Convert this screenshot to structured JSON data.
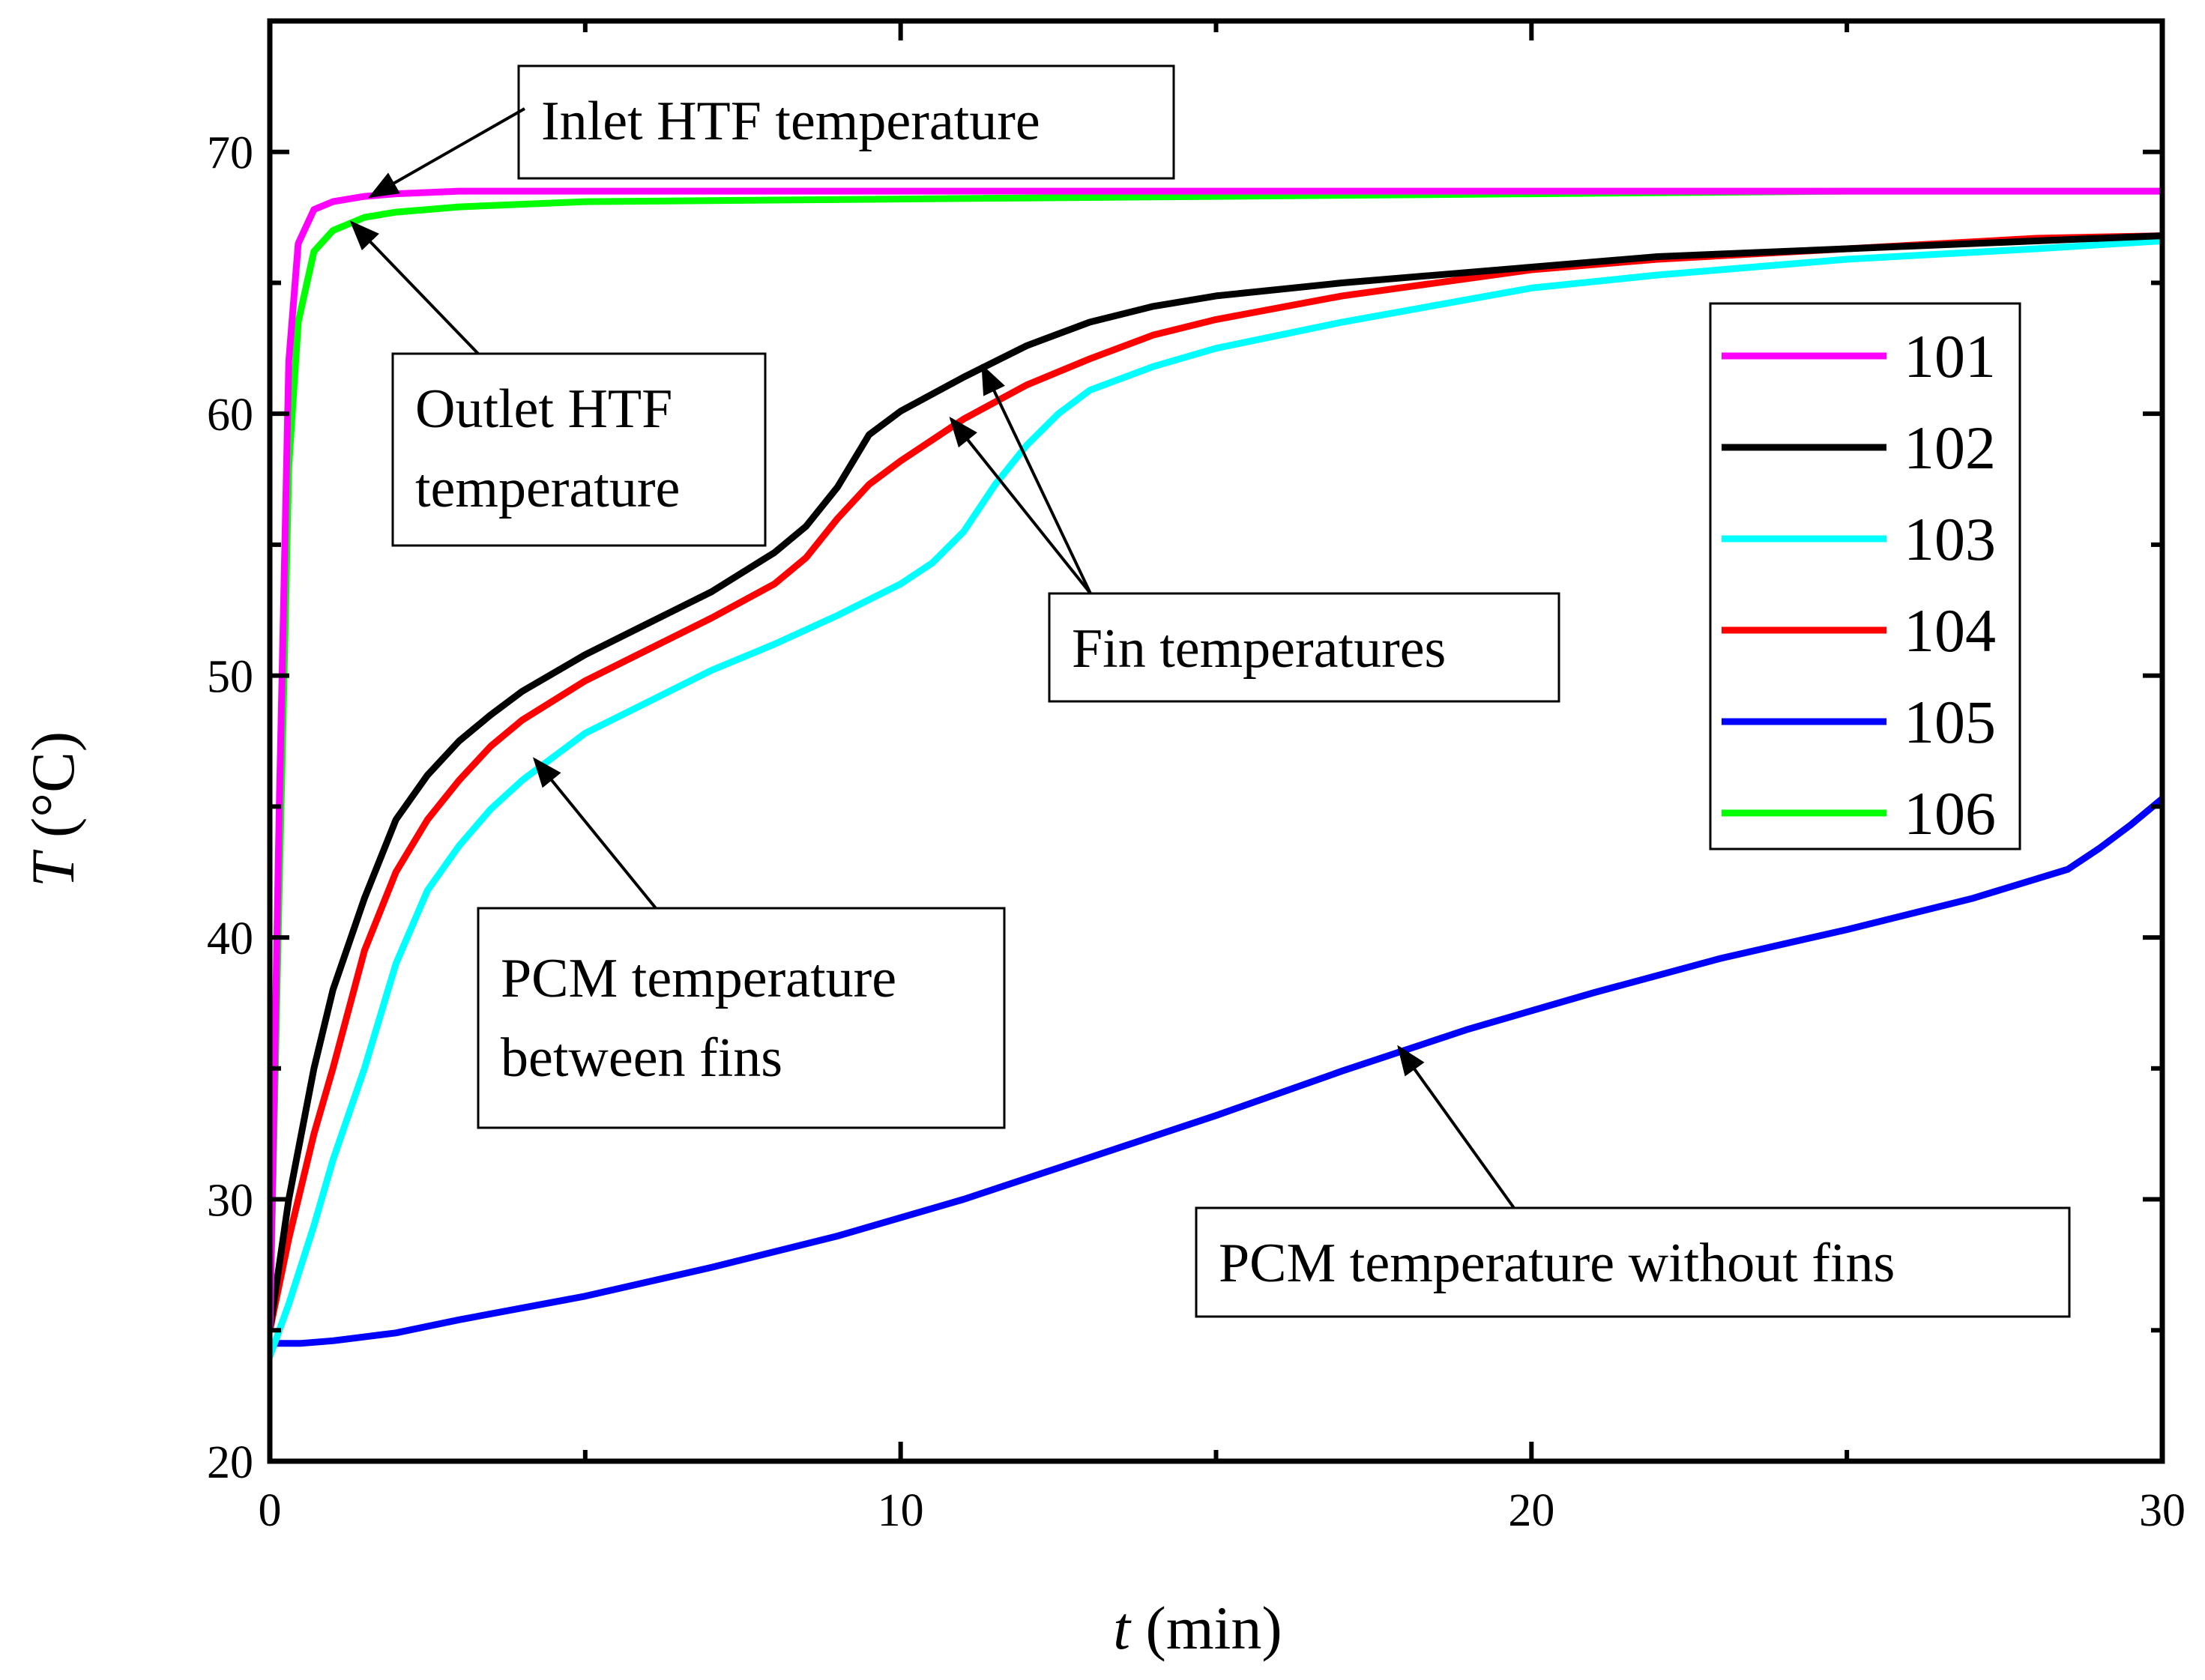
{
  "chart_data": {
    "type": "line",
    "title": "",
    "xlabel_var": "t",
    "xlabel_unit": " (min)",
    "ylabel_var": "T",
    "ylabel_unit": " (°C)",
    "xlim": [
      0,
      30
    ],
    "ylim": [
      20,
      75
    ],
    "xticks": [
      0,
      10,
      20,
      30
    ],
    "yticks": [
      20,
      30,
      40,
      50,
      60,
      70
    ],
    "xtick_labels": [
      "0",
      "10",
      "20",
      "30"
    ],
    "ytick_labels": [
      "20",
      "30",
      "40",
      "50",
      "60",
      "70"
    ],
    "grid": false,
    "legend_position": "right-top",
    "series": [
      {
        "name": "101",
        "color": "#ff00ff",
        "points": [
          [
            0,
            25
          ],
          [
            0.15,
            45
          ],
          [
            0.3,
            62
          ],
          [
            0.45,
            66.5
          ],
          [
            0.7,
            67.8
          ],
          [
            1.0,
            68.1
          ],
          [
            1.5,
            68.3
          ],
          [
            2,
            68.4
          ],
          [
            3,
            68.5
          ],
          [
            5,
            68.5
          ],
          [
            10,
            68.5
          ],
          [
            15,
            68.5
          ],
          [
            20,
            68.5
          ],
          [
            25,
            68.5
          ],
          [
            30,
            68.5
          ]
        ]
      },
      {
        "name": "102",
        "color": "#000000",
        "points": [
          [
            0,
            25
          ],
          [
            0.3,
            30
          ],
          [
            0.7,
            35
          ],
          [
            1,
            38
          ],
          [
            1.5,
            41.5
          ],
          [
            2,
            44.5
          ],
          [
            2.5,
            46.2
          ],
          [
            3,
            47.5
          ],
          [
            3.5,
            48.5
          ],
          [
            4,
            49.4
          ],
          [
            5,
            50.8
          ],
          [
            6,
            52
          ],
          [
            7,
            53.2
          ],
          [
            8,
            54.7
          ],
          [
            8.5,
            55.7
          ],
          [
            9,
            57.2
          ],
          [
            9.5,
            59.2
          ],
          [
            10,
            60.1
          ],
          [
            11,
            61.4
          ],
          [
            12,
            62.6
          ],
          [
            13,
            63.5
          ],
          [
            14,
            64.1
          ],
          [
            15,
            64.5
          ],
          [
            17,
            65
          ],
          [
            20,
            65.6
          ],
          [
            22,
            66
          ],
          [
            25,
            66.3
          ],
          [
            28,
            66.6
          ],
          [
            30,
            66.8
          ]
        ]
      },
      {
        "name": "103",
        "color": "#00ffff",
        "points": [
          [
            0,
            24
          ],
          [
            0.3,
            26
          ],
          [
            0.7,
            29
          ],
          [
            1,
            31.5
          ],
          [
            1.5,
            35
          ],
          [
            2,
            39
          ],
          [
            2.5,
            41.8
          ],
          [
            3,
            43.5
          ],
          [
            3.5,
            44.9
          ],
          [
            4,
            46
          ],
          [
            5,
            47.8
          ],
          [
            6,
            49
          ],
          [
            7,
            50.2
          ],
          [
            8,
            51.2
          ],
          [
            9,
            52.3
          ],
          [
            10,
            53.5
          ],
          [
            10.5,
            54.3
          ],
          [
            11,
            55.5
          ],
          [
            11.5,
            57.3
          ],
          [
            12,
            58.8
          ],
          [
            12.5,
            60
          ],
          [
            13,
            60.9
          ],
          [
            14,
            61.8
          ],
          [
            15,
            62.5
          ],
          [
            17,
            63.5
          ],
          [
            20,
            64.8
          ],
          [
            22,
            65.3
          ],
          [
            25,
            65.9
          ],
          [
            28,
            66.3
          ],
          [
            30,
            66.6
          ]
        ]
      },
      {
        "name": "104",
        "color": "#ff0000",
        "points": [
          [
            0,
            25
          ],
          [
            0.3,
            28.5
          ],
          [
            0.7,
            32.5
          ],
          [
            1,
            35
          ],
          [
            1.5,
            39.5
          ],
          [
            2,
            42.5
          ],
          [
            2.5,
            44.5
          ],
          [
            3,
            46
          ],
          [
            3.5,
            47.3
          ],
          [
            4,
            48.3
          ],
          [
            5,
            49.8
          ],
          [
            6,
            51
          ],
          [
            7,
            52.2
          ],
          [
            8,
            53.5
          ],
          [
            8.5,
            54.5
          ],
          [
            9,
            56
          ],
          [
            9.5,
            57.3
          ],
          [
            10,
            58.2
          ],
          [
            11,
            59.8
          ],
          [
            12,
            61.1
          ],
          [
            13,
            62.1
          ],
          [
            14,
            63
          ],
          [
            15,
            63.6
          ],
          [
            17,
            64.5
          ],
          [
            20,
            65.5
          ],
          [
            22,
            65.9
          ],
          [
            25,
            66.3
          ],
          [
            28,
            66.7
          ],
          [
            30,
            66.8
          ]
        ]
      },
      {
        "name": "105",
        "color": "#0000ff",
        "points": [
          [
            0,
            24.5
          ],
          [
            0.5,
            24.5
          ],
          [
            1,
            24.6
          ],
          [
            2,
            24.9
          ],
          [
            3,
            25.4
          ],
          [
            5,
            26.3
          ],
          [
            7,
            27.4
          ],
          [
            9,
            28.6
          ],
          [
            11,
            30
          ],
          [
            13,
            31.6
          ],
          [
            15,
            33.2
          ],
          [
            17,
            34.9
          ],
          [
            19,
            36.5
          ],
          [
            21,
            37.9
          ],
          [
            23,
            39.2
          ],
          [
            25,
            40.3
          ],
          [
            27,
            41.5
          ],
          [
            28.5,
            42.6
          ],
          [
            29,
            43.4
          ],
          [
            29.5,
            44.3
          ],
          [
            30,
            45.3
          ]
        ]
      },
      {
        "name": "106",
        "color": "#00ff00",
        "points": [
          [
            0,
            25
          ],
          [
            0.15,
            42
          ],
          [
            0.3,
            58
          ],
          [
            0.45,
            63.5
          ],
          [
            0.7,
            66.2
          ],
          [
            1.0,
            67
          ],
          [
            1.5,
            67.5
          ],
          [
            2,
            67.7
          ],
          [
            3,
            67.9
          ],
          [
            5,
            68.1
          ],
          [
            10,
            68.2
          ],
          [
            15,
            68.3
          ],
          [
            20,
            68.4
          ],
          [
            25,
            68.5
          ],
          [
            30,
            68.5
          ]
        ]
      }
    ],
    "annotations": [
      {
        "name": "inlet",
        "lines": [
          "Inlet HTF temperature"
        ],
        "arrow_to": [
          [
            1.6,
            68.3
          ]
        ]
      },
      {
        "name": "outlet",
        "lines": [
          "Outlet HTF",
          "temperature"
        ],
        "arrow_to": [
          [
            1.3,
            67.3
          ]
        ]
      },
      {
        "name": "fin",
        "lines": [
          "Fin temperatures"
        ],
        "arrow_to": [
          [
            11.3,
            61.8
          ],
          [
            10.8,
            59.8
          ]
        ]
      },
      {
        "name": "pcm-between",
        "lines": [
          "PCM temperature",
          "between fins"
        ],
        "arrow_to": [
          [
            4.2,
            46.8
          ]
        ]
      },
      {
        "name": "pcm-without",
        "lines": [
          "PCM temperature without fins"
        ],
        "arrow_to": [
          [
            17.9,
            35.8
          ]
        ]
      }
    ]
  }
}
